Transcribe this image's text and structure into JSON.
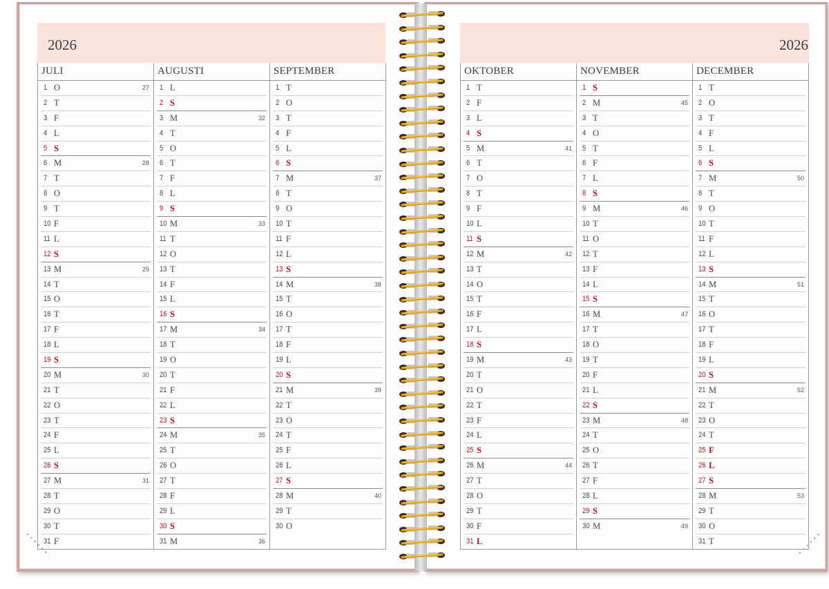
{
  "left": {
    "year": "2026",
    "months": [
      {
        "name": "JULI",
        "days": [
          [
            "1",
            "O",
            0,
            "27"
          ],
          [
            "2",
            "T",
            0,
            ""
          ],
          [
            "3",
            "F",
            0,
            ""
          ],
          [
            "4",
            "L",
            0,
            ""
          ],
          [
            "5",
            "S",
            1,
            ""
          ],
          [
            "6",
            "M",
            0,
            "28"
          ],
          [
            "7",
            "T",
            0,
            ""
          ],
          [
            "8",
            "O",
            0,
            ""
          ],
          [
            "9",
            "T",
            0,
            ""
          ],
          [
            "10",
            "F",
            0,
            ""
          ],
          [
            "11",
            "L",
            0,
            ""
          ],
          [
            "12",
            "S",
            1,
            ""
          ],
          [
            "13",
            "M",
            0,
            "29"
          ],
          [
            "14",
            "T",
            0,
            ""
          ],
          [
            "15",
            "O",
            0,
            ""
          ],
          [
            "16",
            "T",
            0,
            ""
          ],
          [
            "17",
            "F",
            0,
            ""
          ],
          [
            "18",
            "L",
            0,
            ""
          ],
          [
            "19",
            "S",
            1,
            ""
          ],
          [
            "20",
            "M",
            0,
            "30"
          ],
          [
            "21",
            "T",
            0,
            ""
          ],
          [
            "22",
            "O",
            0,
            ""
          ],
          [
            "23",
            "T",
            0,
            ""
          ],
          [
            "24",
            "F",
            0,
            ""
          ],
          [
            "25",
            "L",
            0,
            ""
          ],
          [
            "26",
            "S",
            1,
            ""
          ],
          [
            "27",
            "M",
            0,
            "31"
          ],
          [
            "28",
            "T",
            0,
            ""
          ],
          [
            "29",
            "O",
            0,
            ""
          ],
          [
            "30",
            "T",
            0,
            ""
          ],
          [
            "31",
            "F",
            0,
            ""
          ]
        ]
      },
      {
        "name": "AUGUSTI",
        "days": [
          [
            "1",
            "L",
            0,
            ""
          ],
          [
            "2",
            "S",
            1,
            ""
          ],
          [
            "3",
            "M",
            0,
            "32"
          ],
          [
            "4",
            "T",
            0,
            ""
          ],
          [
            "5",
            "O",
            0,
            ""
          ],
          [
            "6",
            "T",
            0,
            ""
          ],
          [
            "7",
            "F",
            0,
            ""
          ],
          [
            "8",
            "L",
            0,
            ""
          ],
          [
            "9",
            "S",
            1,
            ""
          ],
          [
            "10",
            "M",
            0,
            "33"
          ],
          [
            "11",
            "T",
            0,
            ""
          ],
          [
            "12",
            "O",
            0,
            ""
          ],
          [
            "13",
            "T",
            0,
            ""
          ],
          [
            "14",
            "F",
            0,
            ""
          ],
          [
            "15",
            "L",
            0,
            ""
          ],
          [
            "16",
            "S",
            1,
            ""
          ],
          [
            "17",
            "M",
            0,
            "34"
          ],
          [
            "18",
            "T",
            0,
            ""
          ],
          [
            "19",
            "O",
            0,
            ""
          ],
          [
            "20",
            "T",
            0,
            ""
          ],
          [
            "21",
            "F",
            0,
            ""
          ],
          [
            "22",
            "L",
            0,
            ""
          ],
          [
            "23",
            "S",
            1,
            ""
          ],
          [
            "24",
            "M",
            0,
            "35"
          ],
          [
            "25",
            "T",
            0,
            ""
          ],
          [
            "26",
            "O",
            0,
            ""
          ],
          [
            "27",
            "T",
            0,
            ""
          ],
          [
            "28",
            "F",
            0,
            ""
          ],
          [
            "29",
            "L",
            0,
            ""
          ],
          [
            "30",
            "S",
            1,
            ""
          ],
          [
            "31",
            "M",
            0,
            "36"
          ]
        ]
      },
      {
        "name": "SEPTEMBER",
        "days": [
          [
            "1",
            "T",
            0,
            ""
          ],
          [
            "2",
            "O",
            0,
            ""
          ],
          [
            "3",
            "T",
            0,
            ""
          ],
          [
            "4",
            "F",
            0,
            ""
          ],
          [
            "5",
            "L",
            0,
            ""
          ],
          [
            "6",
            "S",
            1,
            ""
          ],
          [
            "7",
            "M",
            0,
            "37"
          ],
          [
            "8",
            "T",
            0,
            ""
          ],
          [
            "9",
            "O",
            0,
            ""
          ],
          [
            "10",
            "T",
            0,
            ""
          ],
          [
            "11",
            "F",
            0,
            ""
          ],
          [
            "12",
            "L",
            0,
            ""
          ],
          [
            "13",
            "S",
            1,
            ""
          ],
          [
            "14",
            "M",
            0,
            "38"
          ],
          [
            "15",
            "T",
            0,
            ""
          ],
          [
            "16",
            "O",
            0,
            ""
          ],
          [
            "17",
            "T",
            0,
            ""
          ],
          [
            "18",
            "F",
            0,
            ""
          ],
          [
            "19",
            "L",
            0,
            ""
          ],
          [
            "20",
            "S",
            1,
            ""
          ],
          [
            "21",
            "M",
            0,
            "39"
          ],
          [
            "22",
            "T",
            0,
            ""
          ],
          [
            "23",
            "O",
            0,
            ""
          ],
          [
            "24",
            "T",
            0,
            ""
          ],
          [
            "25",
            "F",
            0,
            ""
          ],
          [
            "26",
            "L",
            0,
            ""
          ],
          [
            "27",
            "S",
            1,
            ""
          ],
          [
            "28",
            "M",
            0,
            "40"
          ],
          [
            "29",
            "T",
            0,
            ""
          ],
          [
            "30",
            "O",
            0,
            ""
          ]
        ]
      }
    ]
  },
  "right": {
    "year": "2026",
    "months": [
      {
        "name": "OKTOBER",
        "days": [
          [
            "1",
            "T",
            0,
            ""
          ],
          [
            "2",
            "F",
            0,
            ""
          ],
          [
            "3",
            "L",
            0,
            ""
          ],
          [
            "4",
            "S",
            1,
            ""
          ],
          [
            "5",
            "M",
            0,
            "41"
          ],
          [
            "6",
            "T",
            0,
            ""
          ],
          [
            "7",
            "O",
            0,
            ""
          ],
          [
            "8",
            "T",
            0,
            ""
          ],
          [
            "9",
            "F",
            0,
            ""
          ],
          [
            "10",
            "L",
            0,
            ""
          ],
          [
            "11",
            "S",
            1,
            ""
          ],
          [
            "12",
            "M",
            0,
            "42"
          ],
          [
            "13",
            "T",
            0,
            ""
          ],
          [
            "14",
            "O",
            0,
            ""
          ],
          [
            "15",
            "T",
            0,
            ""
          ],
          [
            "16",
            "F",
            0,
            ""
          ],
          [
            "17",
            "L",
            0,
            ""
          ],
          [
            "18",
            "S",
            1,
            ""
          ],
          [
            "19",
            "M",
            0,
            "43"
          ],
          [
            "20",
            "T",
            0,
            ""
          ],
          [
            "21",
            "O",
            0,
            ""
          ],
          [
            "22",
            "T",
            0,
            ""
          ],
          [
            "23",
            "F",
            0,
            ""
          ],
          [
            "24",
            "L",
            0,
            ""
          ],
          [
            "25",
            "S",
            1,
            ""
          ],
          [
            "26",
            "M",
            0,
            "44"
          ],
          [
            "27",
            "T",
            0,
            ""
          ],
          [
            "28",
            "O",
            0,
            ""
          ],
          [
            "29",
            "T",
            0,
            ""
          ],
          [
            "30",
            "F",
            0,
            ""
          ],
          [
            "31",
            "L",
            1,
            ""
          ]
        ]
      },
      {
        "name": "NOVEMBER",
        "days": [
          [
            "1",
            "S",
            1,
            ""
          ],
          [
            "2",
            "M",
            0,
            "45"
          ],
          [
            "3",
            "T",
            0,
            ""
          ],
          [
            "4",
            "O",
            0,
            ""
          ],
          [
            "5",
            "T",
            0,
            ""
          ],
          [
            "6",
            "F",
            0,
            ""
          ],
          [
            "7",
            "L",
            0,
            ""
          ],
          [
            "8",
            "S",
            1,
            ""
          ],
          [
            "9",
            "M",
            0,
            "46"
          ],
          [
            "10",
            "T",
            0,
            ""
          ],
          [
            "11",
            "O",
            0,
            ""
          ],
          [
            "12",
            "T",
            0,
            ""
          ],
          [
            "13",
            "F",
            0,
            ""
          ],
          [
            "14",
            "L",
            0,
            ""
          ],
          [
            "15",
            "S",
            1,
            ""
          ],
          [
            "16",
            "M",
            0,
            "47"
          ],
          [
            "17",
            "T",
            0,
            ""
          ],
          [
            "18",
            "O",
            0,
            ""
          ],
          [
            "19",
            "T",
            0,
            ""
          ],
          [
            "20",
            "F",
            0,
            ""
          ],
          [
            "21",
            "L",
            0,
            ""
          ],
          [
            "22",
            "S",
            1,
            ""
          ],
          [
            "23",
            "M",
            0,
            "48"
          ],
          [
            "24",
            "T",
            0,
            ""
          ],
          [
            "25",
            "O",
            0,
            ""
          ],
          [
            "26",
            "T",
            0,
            ""
          ],
          [
            "27",
            "F",
            0,
            ""
          ],
          [
            "28",
            "L",
            0,
            ""
          ],
          [
            "29",
            "S",
            1,
            ""
          ],
          [
            "30",
            "M",
            0,
            "49"
          ]
        ]
      },
      {
        "name": "DECEMBER",
        "days": [
          [
            "1",
            "T",
            0,
            ""
          ],
          [
            "2",
            "O",
            0,
            ""
          ],
          [
            "3",
            "T",
            0,
            ""
          ],
          [
            "4",
            "F",
            0,
            ""
          ],
          [
            "5",
            "L",
            0,
            ""
          ],
          [
            "6",
            "S",
            1,
            ""
          ],
          [
            "7",
            "M",
            0,
            "50"
          ],
          [
            "8",
            "T",
            0,
            ""
          ],
          [
            "9",
            "O",
            0,
            ""
          ],
          [
            "10",
            "T",
            0,
            ""
          ],
          [
            "11",
            "F",
            0,
            ""
          ],
          [
            "12",
            "L",
            0,
            ""
          ],
          [
            "13",
            "S",
            1,
            ""
          ],
          [
            "14",
            "M",
            0,
            "51"
          ],
          [
            "15",
            "T",
            0,
            ""
          ],
          [
            "16",
            "O",
            0,
            ""
          ],
          [
            "17",
            "T",
            0,
            ""
          ],
          [
            "18",
            "F",
            0,
            ""
          ],
          [
            "19",
            "L",
            0,
            ""
          ],
          [
            "20",
            "S",
            1,
            ""
          ],
          [
            "21",
            "M",
            0,
            "52"
          ],
          [
            "22",
            "T",
            0,
            ""
          ],
          [
            "23",
            "O",
            0,
            ""
          ],
          [
            "24",
            "T",
            0,
            ""
          ],
          [
            "25",
            "F",
            1,
            ""
          ],
          [
            "26",
            "L",
            1,
            ""
          ],
          [
            "27",
            "S",
            1,
            ""
          ],
          [
            "28",
            "M",
            0,
            "53"
          ],
          [
            "29",
            "T",
            0,
            ""
          ],
          [
            "30",
            "O",
            0,
            ""
          ],
          [
            "31",
            "T",
            0,
            ""
          ]
        ]
      }
    ]
  },
  "colors": {
    "header_band": "#fbe3dc",
    "holiday_red": "#b0121c",
    "cover": "#c9a6a2",
    "spiral": "#d9a21c"
  }
}
